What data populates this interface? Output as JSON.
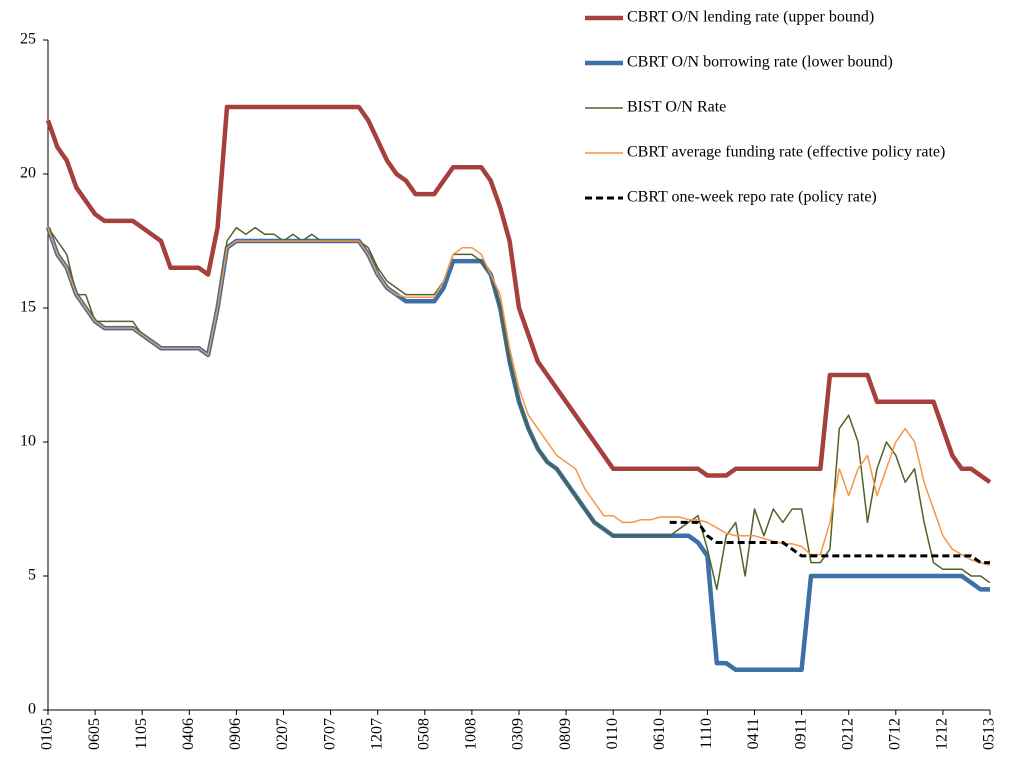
{
  "chart_data": {
    "type": "line",
    "categories": [
      "0105",
      null,
      null,
      null,
      null,
      "0605",
      null,
      null,
      null,
      null,
      "1105",
      null,
      null,
      null,
      null,
      "0406",
      null,
      null,
      null,
      null,
      "0906",
      null,
      null,
      null,
      null,
      "0207",
      null,
      null,
      null,
      null,
      "0707",
      null,
      null,
      null,
      null,
      "1207",
      null,
      null,
      null,
      null,
      "0508",
      null,
      null,
      null,
      null,
      "1008",
      null,
      null,
      null,
      null,
      "0309",
      null,
      null,
      null,
      null,
      "0809",
      null,
      null,
      null,
      null,
      "0110",
      null,
      null,
      null,
      null,
      "0610",
      null,
      null,
      null,
      null,
      "1110",
      null,
      null,
      null,
      null,
      "0411",
      null,
      null,
      null,
      null,
      "0911",
      null,
      null,
      null,
      null,
      "0212",
      null,
      null,
      null,
      null,
      "0712",
      null,
      null,
      null,
      null,
      "1212",
      null,
      null,
      null,
      null,
      "0513"
    ],
    "series": [
      {
        "name": "CBRT O/N lending rate (upper bound)",
        "color": "#a5403c",
        "width": 4.5,
        "values": [
          22,
          21,
          20.5,
          19.5,
          19,
          18.5,
          18.25,
          18.25,
          18.25,
          18.25,
          18,
          17.75,
          17.5,
          16.5,
          16.5,
          16.5,
          16.5,
          16.25,
          18,
          22.5,
          22.5,
          22.5,
          22.5,
          22.5,
          22.5,
          22.5,
          22.5,
          22.5,
          22.5,
          22.5,
          22.5,
          22.5,
          22.5,
          22.5,
          22,
          21.25,
          20.5,
          20,
          19.75,
          19.25,
          19.25,
          19.25,
          19.75,
          20.25,
          20.25,
          20.25,
          20.25,
          19.75,
          18.75,
          17.5,
          15,
          14,
          13,
          12.5,
          12,
          11.5,
          11,
          10.5,
          10,
          9.5,
          9,
          9,
          9,
          9,
          9,
          9,
          9,
          9,
          9,
          9,
          8.75,
          8.75,
          8.75,
          9,
          9,
          9,
          9,
          9,
          9,
          9,
          9,
          9,
          9,
          12.5,
          12.5,
          12.5,
          12.5,
          12.5,
          11.5,
          11.5,
          11.5,
          11.5,
          11.5,
          11.5,
          11.5,
          10.5,
          9.5,
          9,
          9,
          8.75,
          8.5
        ]
      },
      {
        "name": "CBRT O/N borrowing rate (lower bound)",
        "color": "#3d6fa8",
        "width": 4.5,
        "values": [
          18,
          17,
          16.5,
          15.5,
          15,
          14.5,
          14.25,
          14.25,
          14.25,
          14.25,
          14,
          13.75,
          13.5,
          13.5,
          13.5,
          13.5,
          13.5,
          13.25,
          15,
          17.25,
          17.5,
          17.5,
          17.5,
          17.5,
          17.5,
          17.5,
          17.5,
          17.5,
          17.5,
          17.5,
          17.5,
          17.5,
          17.5,
          17.5,
          17,
          16.25,
          15.75,
          15.5,
          15.25,
          15.25,
          15.25,
          15.25,
          15.75,
          16.75,
          16.75,
          16.75,
          16.75,
          16.25,
          15,
          13,
          11.5,
          10.5,
          9.75,
          9.25,
          9,
          8.5,
          8,
          7.5,
          7,
          6.75,
          6.5,
          6.5,
          6.5,
          6.5,
          6.5,
          6.5,
          6.5,
          6.5,
          6.5,
          6.25,
          5.75,
          1.75,
          1.75,
          1.5,
          1.5,
          1.5,
          1.5,
          1.5,
          1.5,
          1.5,
          1.5,
          5,
          5,
          5,
          5,
          5,
          5,
          5,
          5,
          5,
          5,
          5,
          5,
          5,
          5,
          5,
          5,
          5,
          4.75,
          4.5,
          4.5
        ]
      },
      {
        "name": "BIST O/N Rate",
        "color": "#4f6228",
        "width": 1.5,
        "values": [
          18,
          17.5,
          17,
          15.5,
          15.5,
          14.5,
          14.5,
          14.5,
          14.5,
          14.5,
          14,
          13.75,
          13.5,
          13.5,
          13.5,
          13.5,
          13.5,
          13.25,
          15,
          17.5,
          18,
          17.75,
          18,
          17.75,
          17.75,
          17.5,
          17.75,
          17.5,
          17.75,
          17.5,
          17.5,
          17.5,
          17.5,
          17.5,
          17.25,
          16.5,
          16,
          15.75,
          15.5,
          15.5,
          15.5,
          15.5,
          16,
          17,
          17,
          17,
          16.75,
          16.25,
          15,
          13,
          11.5,
          10.5,
          9.75,
          9.25,
          9,
          8.5,
          8,
          7.5,
          7,
          6.75,
          6.5,
          6.5,
          6.5,
          6.5,
          6.5,
          6.5,
          6.5,
          6.75,
          7,
          7.25,
          6,
          4.5,
          6.5,
          7,
          5,
          7.5,
          6.5,
          7.5,
          7,
          7.5,
          7.5,
          5.5,
          5.5,
          6,
          10.5,
          11,
          10,
          7,
          9,
          10,
          9.5,
          8.5,
          9,
          7,
          5.5,
          5.25,
          5.25,
          5.25,
          5,
          5,
          4.75
        ]
      },
      {
        "name": "CBRT average funding rate (effective policy rate)",
        "color": "#f79646",
        "width": 1.5,
        "values": [
          18,
          17,
          16.5,
          15.5,
          15,
          14.5,
          14.25,
          14.25,
          14.25,
          14.25,
          14,
          13.75,
          13.5,
          13.5,
          13.5,
          13.5,
          13.5,
          13.25,
          15,
          17.25,
          17.5,
          17.5,
          17.5,
          17.5,
          17.5,
          17.5,
          17.5,
          17.5,
          17.5,
          17.5,
          17.5,
          17.5,
          17.5,
          17.5,
          17,
          16.25,
          15.75,
          15.5,
          15.4,
          15.4,
          15.4,
          15.4,
          16,
          17,
          17.25,
          17.25,
          17,
          16.25,
          15.5,
          13.5,
          12,
          11,
          10.5,
          10,
          9.5,
          9.25,
          9,
          8.25,
          7.75,
          7.25,
          7.25,
          7,
          7,
          7.1,
          7.1,
          7.2,
          7.2,
          7.2,
          7.1,
          7.1,
          7,
          6.8,
          6.6,
          6.5,
          6.5,
          6.5,
          6.4,
          6.3,
          6.2,
          6.2,
          6.1,
          5.8,
          5.8,
          7,
          9,
          8,
          9,
          9.5,
          8,
          9,
          10,
          10.5,
          10,
          8.5,
          7.5,
          6.5,
          6,
          5.8,
          5.6,
          5.5,
          5.4
        ]
      },
      {
        "name": "CBRT one-week repo rate (policy rate)",
        "color": "#000000",
        "width": 3,
        "dashed": true,
        "values": [
          null,
          null,
          null,
          null,
          null,
          null,
          null,
          null,
          null,
          null,
          null,
          null,
          null,
          null,
          null,
          null,
          null,
          null,
          null,
          null,
          null,
          null,
          null,
          null,
          null,
          null,
          null,
          null,
          null,
          null,
          null,
          null,
          null,
          null,
          null,
          null,
          null,
          null,
          null,
          null,
          null,
          null,
          null,
          null,
          null,
          null,
          null,
          null,
          null,
          null,
          null,
          null,
          null,
          null,
          null,
          null,
          null,
          null,
          null,
          null,
          null,
          null,
          null,
          null,
          null,
          null,
          7,
          7,
          7,
          7,
          6.5,
          6.25,
          6.25,
          6.25,
          6.25,
          6.25,
          6.25,
          6.25,
          6.25,
          6,
          5.75,
          5.75,
          5.75,
          5.75,
          5.75,
          5.75,
          5.75,
          5.75,
          5.75,
          5.75,
          5.75,
          5.75,
          5.75,
          5.75,
          5.75,
          5.75,
          5.75,
          5.75,
          5.75,
          5.5,
          5.5
        ]
      }
    ],
    "ylim": [
      0,
      25
    ],
    "yticks": [
      0,
      5,
      10,
      15,
      20,
      25
    ],
    "legend": "top-right"
  }
}
